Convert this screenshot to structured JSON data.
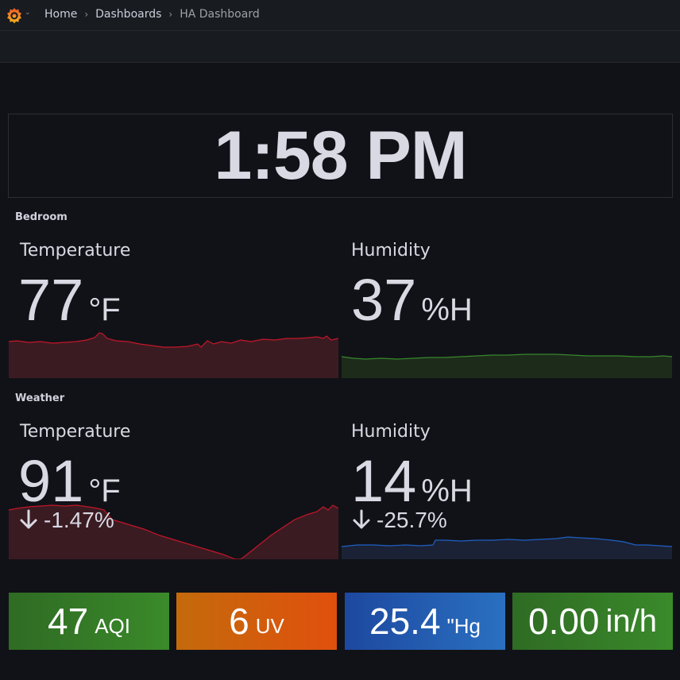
{
  "nav": {
    "breadcrumbs": [
      "Home",
      "Dashboards",
      "HA Dashboard"
    ],
    "logo_icon": "grafana-logo-icon",
    "chevron_icon": "chevron-down-icon",
    "separator_icon": "chevron-right-icon"
  },
  "clock": {
    "time": "1:58 PM"
  },
  "rows": {
    "bedroom": "Bedroom",
    "weather": "Weather"
  },
  "bedroom": {
    "temperature": {
      "title": "Temperature",
      "value": "77",
      "unit": "°F",
      "color": "#c4162a"
    },
    "humidity": {
      "title": "Humidity",
      "value": "37",
      "unit": "%H",
      "color": "#37872d"
    }
  },
  "weather": {
    "temperature": {
      "title": "Temperature",
      "value": "91",
      "unit": "°F",
      "trend": "-1.47%",
      "trend_icon": "arrow-down-icon",
      "color": "#c4162a"
    },
    "humidity": {
      "title": "Humidity",
      "value": "14",
      "unit": "%H",
      "trend": "-25.7%",
      "trend_icon": "arrow-down-icon",
      "color": "#1f60c4"
    }
  },
  "tiles": [
    {
      "value": "47",
      "unit": "AQI",
      "color_from": "#2f6b24",
      "color_to": "#3a8a2a"
    },
    {
      "value": "6",
      "unit": "UV",
      "color_from": "#c46a0c",
      "color_to": "#e0500d"
    },
    {
      "value": "25.4",
      "unit": "\"Hg",
      "color_from": "#1d48a0",
      "color_to": "#2a70c0"
    },
    {
      "value": "0.00",
      "unit": "in/h",
      "color_from": "#2f6b24",
      "color_to": "#3a8a2a"
    }
  ]
}
